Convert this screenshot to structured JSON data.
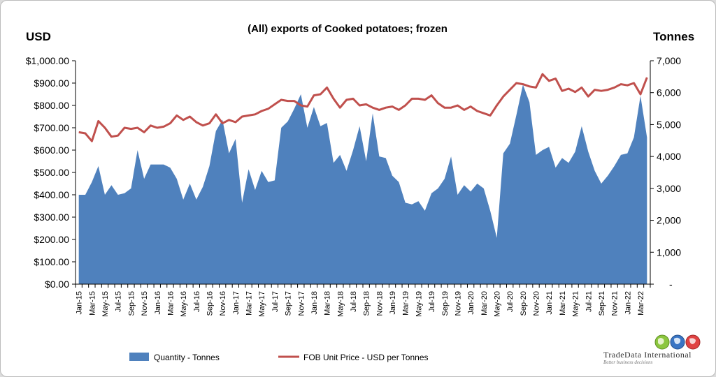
{
  "chart_data": {
    "type": "area+line",
    "title": "(All) exports of Cooked potatoes; frozen",
    "y_left_unit": "USD",
    "y_right_unit": "Tonnes",
    "y_left_ticks": [
      "$0.00",
      "$100.00",
      "$200.00",
      "$300.00",
      "$400.00",
      "$500.00",
      "$600.00",
      "$700.00",
      "$800.00",
      "$900.00",
      "$1,000.00"
    ],
    "y_right_ticks": [
      "-",
      "1,000",
      "2,000",
      "3,000",
      "4,000",
      "5,000",
      "6,000",
      "7,000"
    ],
    "ylim_left": [
      0,
      1000
    ],
    "ylim_right": [
      0,
      7000
    ],
    "x_tick_labels": [
      "Jan-15",
      "Mar-15",
      "May-15",
      "Jul-15",
      "Sep-15",
      "Nov-15",
      "Jan-16",
      "Mar-16",
      "May-16",
      "Jul-16",
      "Sep-16",
      "Nov-16",
      "Jan-17",
      "Mar-17",
      "May-17",
      "Jul-17",
      "Sep-17",
      "Nov-17",
      "Jan-18",
      "Mar-18",
      "May-18",
      "Jul-18",
      "Sep-18",
      "Nov-18",
      "Jan-19",
      "Mar-19",
      "May-19",
      "Jul-19",
      "Sep-19",
      "Nov-19",
      "Jan-20",
      "Mar-20",
      "May-20",
      "Jul-20",
      "Sep-20",
      "Nov-20",
      "Jan-21",
      "Mar-21",
      "May-21",
      "Jul-21",
      "Sep-21",
      "Nov-21",
      "Jan-22",
      "Mar-22"
    ],
    "x_months": [
      "Jan-15",
      "Feb-15",
      "Mar-15",
      "Apr-15",
      "May-15",
      "Jun-15",
      "Jul-15",
      "Aug-15",
      "Sep-15",
      "Oct-15",
      "Nov-15",
      "Dec-15",
      "Jan-16",
      "Feb-16",
      "Mar-16",
      "Apr-16",
      "May-16",
      "Jun-16",
      "Jul-16",
      "Aug-16",
      "Sep-16",
      "Oct-16",
      "Nov-16",
      "Dec-16",
      "Jan-17",
      "Feb-17",
      "Mar-17",
      "Apr-17",
      "May-17",
      "Jun-17",
      "Jul-17",
      "Aug-17",
      "Sep-17",
      "Oct-17",
      "Nov-17",
      "Dec-17",
      "Jan-18",
      "Feb-18",
      "Mar-18",
      "Apr-18",
      "May-18",
      "Jun-18",
      "Jul-18",
      "Aug-18",
      "Sep-18",
      "Oct-18",
      "Nov-18",
      "Dec-18",
      "Jan-19",
      "Feb-19",
      "Mar-19",
      "Apr-19",
      "May-19",
      "Jun-19",
      "Jul-19",
      "Aug-19",
      "Sep-19",
      "Oct-19",
      "Nov-19",
      "Dec-19",
      "Jan-20",
      "Feb-20",
      "Mar-20",
      "Apr-20",
      "May-20",
      "Jun-20",
      "Jul-20",
      "Aug-20",
      "Sep-20",
      "Oct-20",
      "Nov-20",
      "Dec-20",
      "Jan-21",
      "Feb-21",
      "Mar-21",
      "Apr-21",
      "May-21",
      "Jun-21",
      "Jul-21",
      "Aug-21",
      "Sep-21",
      "Oct-21",
      "Nov-21",
      "Dec-21",
      "Jan-22",
      "Feb-22",
      "Mar-22",
      "Apr-22"
    ],
    "series": [
      {
        "name": "Quantity - Tonnes",
        "kind": "area",
        "axis": "right",
        "color": "#4f81bd",
        "values": [
          2800,
          2800,
          3200,
          3700,
          2800,
          3100,
          2800,
          2850,
          3000,
          4200,
          3300,
          3750,
          3750,
          3750,
          3650,
          3300,
          2650,
          3150,
          2650,
          3050,
          3700,
          4800,
          5150,
          4100,
          4550,
          2550,
          3600,
          2950,
          3550,
          3200,
          3250,
          4900,
          5100,
          5500,
          5950,
          4900,
          5550,
          4950,
          5050,
          3800,
          4050,
          3550,
          4200,
          4950,
          3850,
          5350,
          4000,
          3950,
          3400,
          3200,
          2550,
          2500,
          2600,
          2300,
          2850,
          3000,
          3300,
          4000,
          2800,
          3100,
          2900,
          3150,
          3000,
          2300,
          1450,
          4100,
          4400,
          5300,
          6250,
          5700,
          4050,
          4200,
          4300,
          3650,
          3950,
          3800,
          4150,
          4950,
          4150,
          3550,
          3150,
          3400,
          3700,
          4050,
          4100,
          4600,
          5900,
          4600
        ]
      },
      {
        "name": "FOB Unit Price - USD per Tonnes",
        "kind": "line",
        "axis": "left",
        "color": "#c0504d",
        "values": [
          680,
          675,
          640,
          730,
          700,
          660,
          665,
          700,
          695,
          700,
          680,
          710,
          700,
          705,
          720,
          755,
          735,
          750,
          725,
          710,
          720,
          760,
          720,
          735,
          725,
          750,
          755,
          760,
          775,
          785,
          805,
          825,
          820,
          820,
          800,
          795,
          845,
          850,
          880,
          830,
          790,
          825,
          830,
          800,
          805,
          790,
          780,
          790,
          795,
          780,
          800,
          830,
          830,
          825,
          845,
          810,
          790,
          790,
          800,
          780,
          795,
          775,
          765,
          755,
          800,
          840,
          870,
          900,
          895,
          885,
          880,
          940,
          910,
          920,
          865,
          875,
          860,
          880,
          840,
          870,
          865,
          870,
          880,
          895,
          890,
          900,
          850,
          925
        ]
      }
    ],
    "legend": [
      "Quantity - Tonnes",
      "FOB Unit Price - USD per Tonnes"
    ],
    "legend_position": "bottom"
  },
  "branding": {
    "name": "TradeData International",
    "tagline": "Better business decisions"
  }
}
